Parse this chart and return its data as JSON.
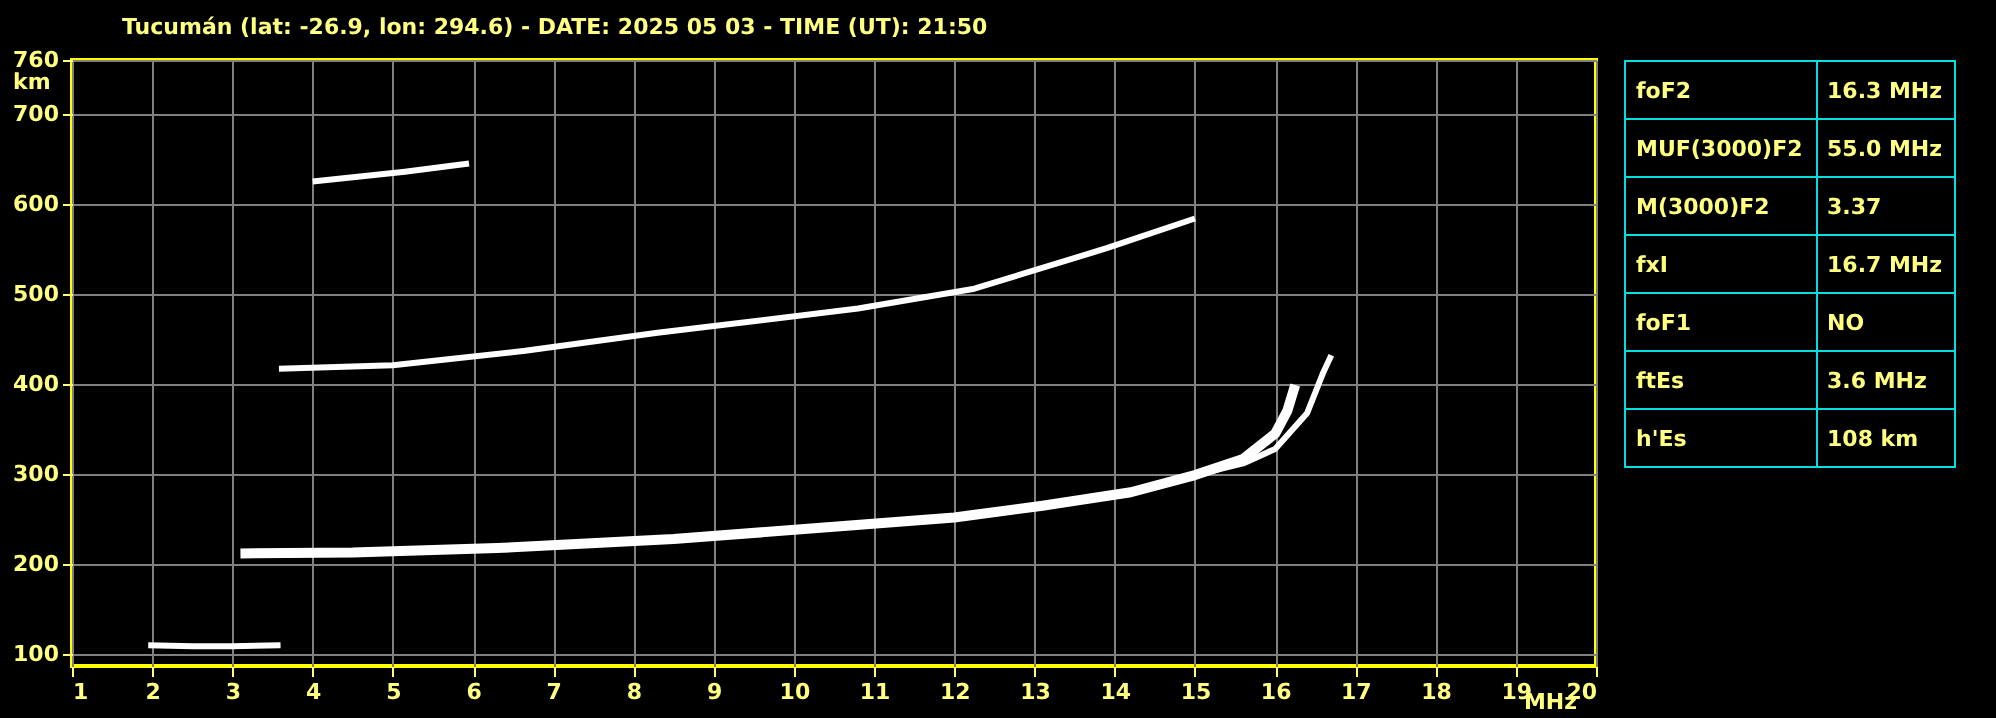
{
  "chart_data": [
    {
      "type": "line",
      "title": "Tucumán (lat: -26.9, lon: 294.6) - DATE: 2025 05 03 - TIME (UT): 21:50",
      "xlabel": "MHz",
      "ylabel": "km",
      "xlim": [
        1,
        20
      ],
      "xticks": [
        1,
        2,
        3,
        4,
        5,
        6,
        7,
        8,
        9,
        10,
        11,
        12,
        13,
        14,
        15,
        16,
        17,
        18,
        19,
        20
      ],
      "ylim": [
        87,
        760
      ],
      "yticks": [
        100,
        200,
        300,
        400,
        500,
        600,
        700,
        760
      ],
      "grid": true,
      "marker": "none",
      "series": [
        {
          "color": "#ffffff",
          "x": [
            1.95,
            2.5,
            3.0,
            3.6
          ],
          "values": [
            110,
            109,
            109,
            110
          ]
        },
        {
          "color": "#ffffff",
          "x": [
            3.1,
            4.5,
            6.3,
            8.5,
            10.7,
            12.0,
            13.1,
            14.2,
            15.0,
            15.6,
            16.0,
            16.15,
            16.25
          ],
          "values": [
            212,
            213,
            218,
            228,
            243,
            252,
            265,
            280,
            299,
            317,
            345,
            370,
            399
          ]
        },
        {
          "color": "#ffffff",
          "x": [
            15.0,
            15.6,
            16.0,
            16.4,
            16.6,
            16.7
          ],
          "values": [
            299,
            312,
            328,
            368,
            413,
            432
          ]
        },
        {
          "color": "#ffffff",
          "x": [
            3.58,
            5.0,
            6.65,
            8.3,
            10.8,
            12.25,
            13.9,
            15.0
          ],
          "values": [
            417,
            421,
            437,
            457,
            484,
            506,
            551,
            584
          ]
        },
        {
          "color": "#ffffff",
          "x": [
            4.0,
            5.15,
            5.95
          ],
          "values": [
            625,
            636,
            645
          ]
        }
      ]
    },
    {
      "type": "other",
      "annotations": [
        "foF2",
        "16.3 MHz",
        "MUF(3000)F2",
        "55.0 MHz",
        "M(3000)F2",
        "3.37",
        "fxI",
        "16.7 MHz",
        "foF1",
        "NO",
        "ftEs",
        "3.6 MHz",
        "h'Es",
        "108 km"
      ]
    }
  ]
}
